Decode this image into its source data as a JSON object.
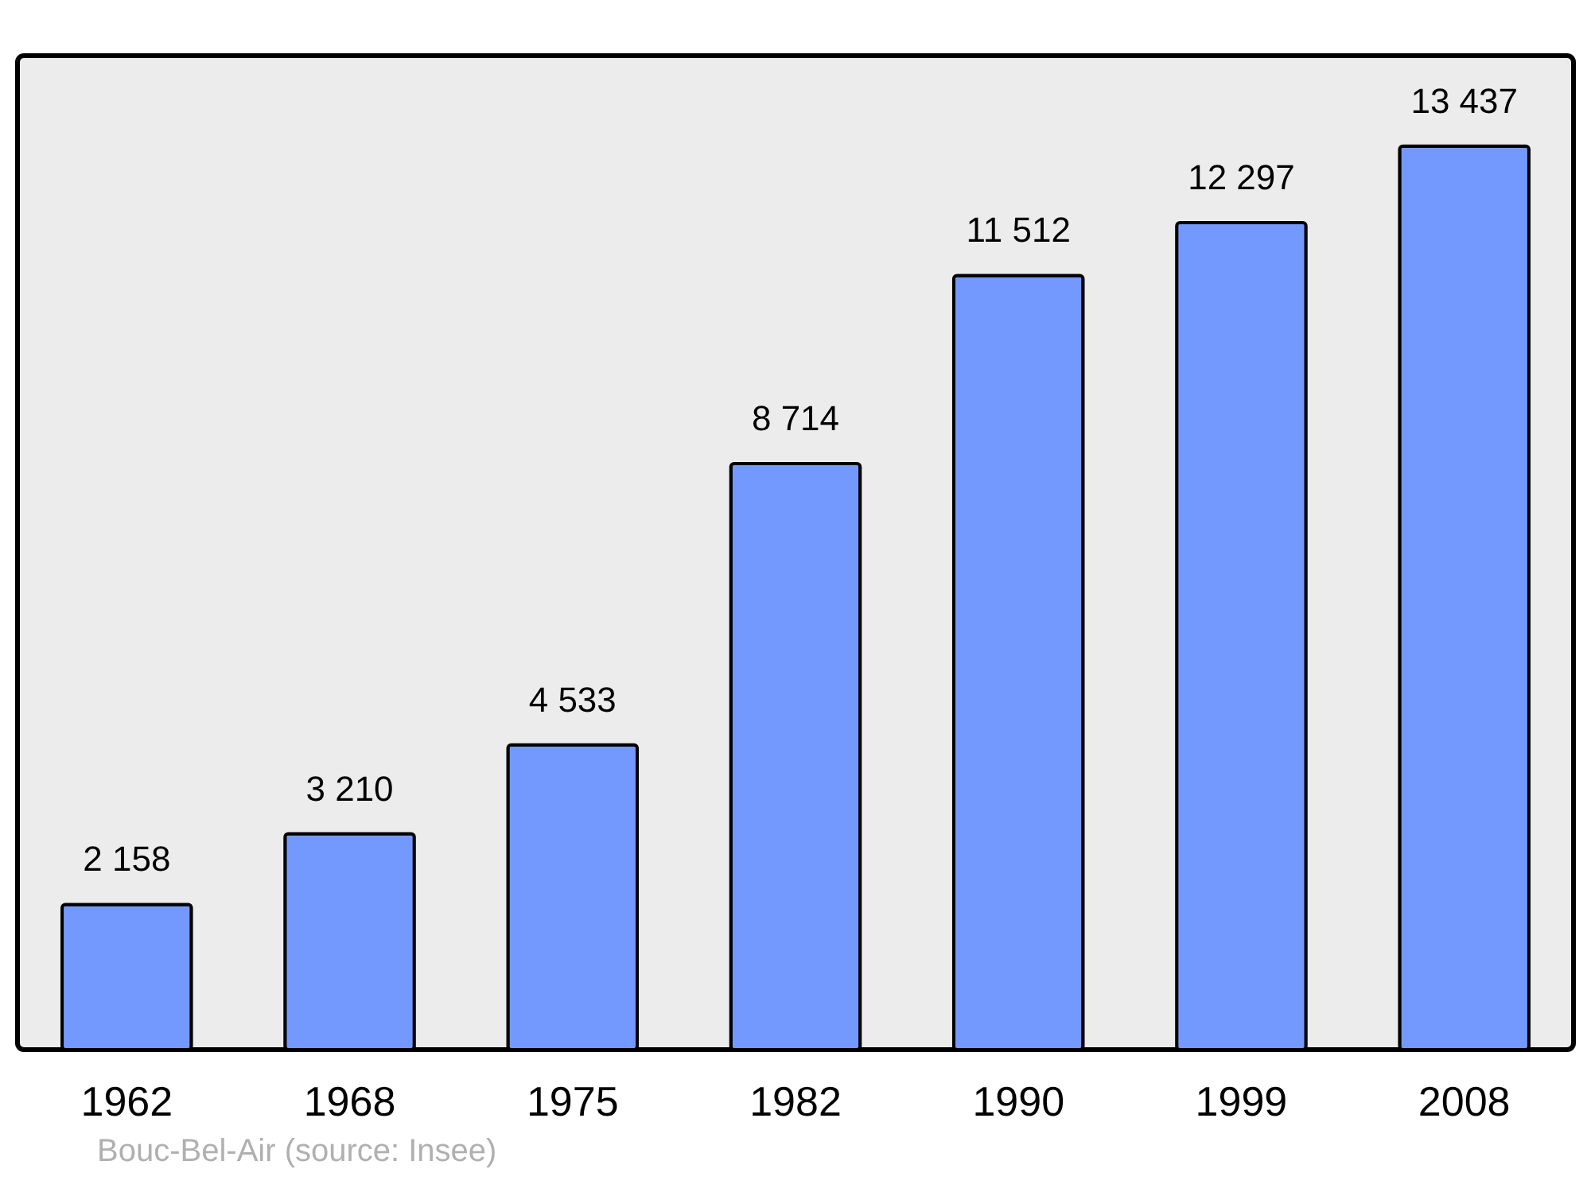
{
  "chart_data": {
    "type": "bar",
    "categories": [
      "1962",
      "1968",
      "1975",
      "1982",
      "1990",
      "1999",
      "2008"
    ],
    "values": [
      2158,
      3210,
      4533,
      8714,
      11512,
      12297,
      13437
    ],
    "value_labels": [
      "2 158",
      "3 210",
      "4 533",
      "8 714",
      "11 512",
      "12 297",
      "13 437"
    ],
    "color": "#7399ff",
    "annotations": [
      "Bouc-Bel-Air    (source: Insee)"
    ]
  }
}
